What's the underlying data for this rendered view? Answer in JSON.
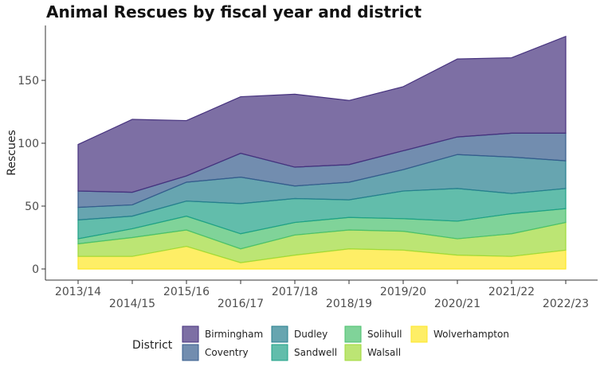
{
  "chart_data": {
    "type": "area",
    "stacked": true,
    "title": "Animal Rescues by fiscal year and district",
    "xlabel": "",
    "ylabel": "Rescues",
    "categories": [
      "2013/14",
      "2014/15",
      "2015/16",
      "2016/17",
      "2017/18",
      "2018/19",
      "2019/20",
      "2020/21",
      "2021/22",
      "2022/23"
    ],
    "ylim": [
      0,
      190
    ],
    "yticks": [
      0,
      50,
      100,
      150
    ],
    "grid": false,
    "legend": {
      "title": "District",
      "placement": "bottom"
    },
    "series": [
      {
        "name": "Wolverhampton",
        "color": "#fde725",
        "values": [
          10,
          10,
          18,
          5,
          11,
          16,
          15,
          11,
          10,
          15
        ]
      },
      {
        "name": "Walsall",
        "color": "#a0da39",
        "values": [
          10,
          15,
          13,
          11,
          16,
          15,
          15,
          13,
          18,
          22
        ]
      },
      {
        "name": "Solihull",
        "color": "#4ac16d",
        "values": [
          4,
          7,
          11,
          12,
          10,
          10,
          10,
          14,
          16,
          11
        ]
      },
      {
        "name": "Sandwell",
        "color": "#1fa187",
        "values": [
          15,
          10,
          12,
          24,
          19,
          14,
          22,
          26,
          16,
          16
        ]
      },
      {
        "name": "Dudley",
        "color": "#277f8e",
        "values": [
          10,
          9,
          15,
          21,
          10,
          14,
          17,
          27,
          29,
          22
        ]
      },
      {
        "name": "Coventry",
        "color": "#365c8d",
        "values": [
          13,
          10,
          5,
          19,
          15,
          14,
          15,
          14,
          19,
          22
        ]
      },
      {
        "name": "Birmingham",
        "color": "#46327e",
        "values": [
          37,
          58,
          44,
          45,
          58,
          51,
          51,
          62,
          60,
          77
        ]
      }
    ],
    "legend_order": [
      "Birmingham",
      "Coventry",
      "Dudley",
      "Sandwell",
      "Solihull",
      "Walsall",
      "Wolverhampton"
    ]
  }
}
